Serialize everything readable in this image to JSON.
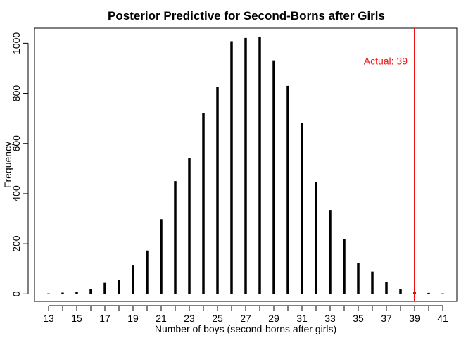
{
  "chart_data": {
    "type": "bar",
    "title": "Posterior Predictive for Second-Borns after Girls",
    "xlabel": "Number of boys (second-borns after girls)",
    "ylabel": "Frequency",
    "xlim": [
      12,
      42
    ],
    "ylim": [
      -30,
      1060
    ],
    "x_ticks": [
      13,
      14,
      15,
      16,
      17,
      18,
      19,
      20,
      21,
      22,
      23,
      24,
      25,
      26,
      27,
      28,
      29,
      30,
      31,
      32,
      33,
      34,
      35,
      36,
      37,
      38,
      39,
      40,
      41
    ],
    "x_tick_labels": [
      "13",
      "",
      "15",
      "",
      "17",
      "",
      "19",
      "",
      "21",
      "",
      "23",
      "",
      "25",
      "",
      "27",
      "",
      "29",
      "",
      "31",
      "",
      "33",
      "",
      "35",
      "",
      "37",
      "",
      "39",
      "",
      "41"
    ],
    "y_ticks": [
      0,
      200,
      400,
      600,
      800,
      1000
    ],
    "y_tick_labels": [
      "0",
      "200",
      "400",
      "600",
      "800",
      "1000"
    ],
    "x": [
      13,
      14,
      15,
      16,
      17,
      18,
      19,
      20,
      21,
      22,
      23,
      24,
      25,
      26,
      27,
      28,
      29,
      30,
      31,
      32,
      33,
      34,
      35,
      36,
      37,
      38,
      39,
      40,
      41
    ],
    "values": [
      2,
      5,
      7,
      18,
      44,
      57,
      113,
      173,
      298,
      450,
      541,
      723,
      827,
      1008,
      1021,
      1024,
      932,
      830,
      681,
      447,
      335,
      220,
      122,
      89,
      48,
      18,
      7,
      4,
      2
    ],
    "bar_color": "#000000",
    "reference_line": {
      "x": 39,
      "label": "Actual: 39",
      "color": "#ee1111"
    },
    "grid": false,
    "legend": "none"
  }
}
